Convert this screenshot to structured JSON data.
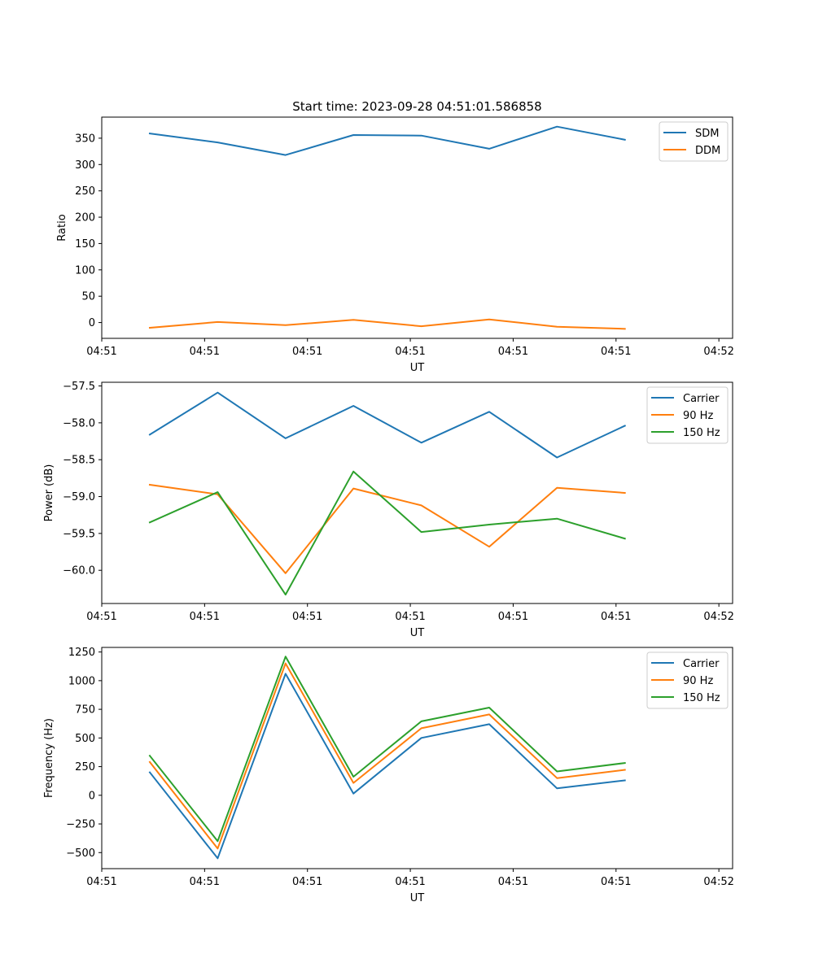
{
  "figure": {
    "title": "Start time: 2023-09-28 04:51:01.586858"
  },
  "chart_data": [
    {
      "type": "line",
      "xlabel": "UT",
      "ylabel": "Ratio",
      "xlim": [
        0,
        9.2
      ],
      "ylim": [
        -30,
        390
      ],
      "xticks": [
        {
          "v": 0,
          "label": "04:51"
        },
        {
          "v": 1.5,
          "label": "04:51"
        },
        {
          "v": 3,
          "label": "04:51"
        },
        {
          "v": 4.5,
          "label": "04:51"
        },
        {
          "v": 6,
          "label": "04:51"
        },
        {
          "v": 7.5,
          "label": "04:51"
        },
        {
          "v": 9,
          "label": "04:52"
        }
      ],
      "yticks": [
        {
          "v": 0,
          "label": "0"
        },
        {
          "v": 50,
          "label": "50"
        },
        {
          "v": 100,
          "label": "100"
        },
        {
          "v": 150,
          "label": "150"
        },
        {
          "v": 200,
          "label": "200"
        },
        {
          "v": 250,
          "label": "250"
        },
        {
          "v": 300,
          "label": "300"
        },
        {
          "v": 350,
          "label": "350"
        }
      ],
      "x": [
        0.7,
        1.69,
        2.68,
        3.67,
        4.66,
        5.65,
        6.64,
        7.63
      ],
      "series": [
        {
          "name": "SDM",
          "color": "#1f77b4",
          "values": [
            359,
            342,
            318,
            356,
            355,
            330,
            372,
            347
          ]
        },
        {
          "name": "DDM",
          "color": "#ff7f0e",
          "values": [
            -10,
            1,
            -5,
            5,
            -7,
            6,
            -8,
            -12
          ]
        }
      ],
      "legend": "top-right"
    },
    {
      "type": "line",
      "xlabel": "UT",
      "ylabel": "Power (dB)",
      "xlim": [
        0,
        9.2
      ],
      "ylim": [
        -60.45,
        -57.45
      ],
      "xticks": [
        {
          "v": 0,
          "label": "04:51"
        },
        {
          "v": 1.5,
          "label": "04:51"
        },
        {
          "v": 3,
          "label": "04:51"
        },
        {
          "v": 4.5,
          "label": "04:51"
        },
        {
          "v": 6,
          "label": "04:51"
        },
        {
          "v": 7.5,
          "label": "04:51"
        },
        {
          "v": 9,
          "label": "04:52"
        }
      ],
      "yticks": [
        {
          "v": -60.0,
          "label": "−60.0"
        },
        {
          "v": -59.5,
          "label": "−59.5"
        },
        {
          "v": -59.0,
          "label": "−59.0"
        },
        {
          "v": -58.5,
          "label": "−58.5"
        },
        {
          "v": -58.0,
          "label": "−58.0"
        },
        {
          "v": -57.5,
          "label": "−57.5"
        }
      ],
      "x": [
        0.7,
        1.69,
        2.68,
        3.67,
        4.66,
        5.65,
        6.64,
        7.63
      ],
      "series": [
        {
          "name": "Carrier",
          "color": "#1f77b4",
          "values": [
            -58.16,
            -57.59,
            -58.21,
            -57.77,
            -58.27,
            -57.85,
            -58.47,
            -58.04
          ]
        },
        {
          "name": "90 Hz",
          "color": "#ff7f0e",
          "values": [
            -58.84,
            -58.97,
            -60.04,
            -58.89,
            -59.12,
            -59.68,
            -58.88,
            -58.95
          ]
        },
        {
          "name": "150 Hz",
          "color": "#2ca02c",
          "values": [
            -59.35,
            -58.94,
            -60.33,
            -58.66,
            -59.48,
            -59.38,
            -59.3,
            -59.57
          ]
        }
      ],
      "legend": "top-right"
    },
    {
      "type": "line",
      "xlabel": "UT",
      "ylabel": "Frequency (Hz)",
      "xlim": [
        0,
        9.2
      ],
      "ylim": [
        -640,
        1290
      ],
      "xticks": [
        {
          "v": 0,
          "label": "04:51"
        },
        {
          "v": 1.5,
          "label": "04:51"
        },
        {
          "v": 3,
          "label": "04:51"
        },
        {
          "v": 4.5,
          "label": "04:51"
        },
        {
          "v": 6,
          "label": "04:51"
        },
        {
          "v": 7.5,
          "label": "04:51"
        },
        {
          "v": 9,
          "label": "04:52"
        }
      ],
      "yticks": [
        {
          "v": -500,
          "label": "−500"
        },
        {
          "v": -250,
          "label": "−250"
        },
        {
          "v": 0,
          "label": "0"
        },
        {
          "v": 250,
          "label": "250"
        },
        {
          "v": 500,
          "label": "500"
        },
        {
          "v": 750,
          "label": "750"
        },
        {
          "v": 1000,
          "label": "1000"
        },
        {
          "v": 1250,
          "label": "1250"
        }
      ],
      "x": [
        0.7,
        1.69,
        2.68,
        3.67,
        4.66,
        5.65,
        6.64,
        7.63
      ],
      "series": [
        {
          "name": "Carrier",
          "color": "#1f77b4",
          "values": [
            200,
            -550,
            1060,
            15,
            500,
            620,
            60,
            130
          ]
        },
        {
          "name": "90 Hz",
          "color": "#ff7f0e",
          "values": [
            290,
            -465,
            1150,
            108,
            585,
            705,
            150,
            222
          ]
        },
        {
          "name": "150 Hz",
          "color": "#2ca02c",
          "values": [
            345,
            -400,
            1210,
            162,
            645,
            765,
            208,
            282
          ]
        }
      ],
      "legend": "top-right"
    }
  ]
}
